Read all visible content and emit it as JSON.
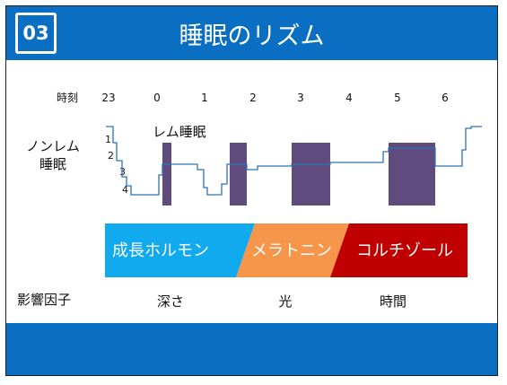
{
  "header": {
    "badge": "03",
    "title": "睡眠のリズム"
  },
  "chart": {
    "time_label": "時刻",
    "hours": [
      "23",
      "0",
      "1",
      "2",
      "3",
      "4",
      "5",
      "6"
    ],
    "nonrem_label_line1": "ノンレム",
    "nonrem_label_line2": "睡眠",
    "depth_levels": [
      "1",
      "2",
      "3",
      "4"
    ],
    "rem_label": "レム睡眠"
  },
  "factors": {
    "label": "影響因子",
    "hormones": [
      "成長ホルモン",
      "メラトニン",
      "コルチゾール"
    ],
    "hormone_colors": [
      "#12aaee",
      "#f5964a",
      "#c00000"
    ],
    "items": [
      "深さ",
      "光",
      "時間"
    ]
  },
  "colors": {
    "header": "#0a6fc2",
    "sleep_line": "#2e74b5",
    "rem_block": "#5f4b7d"
  }
}
